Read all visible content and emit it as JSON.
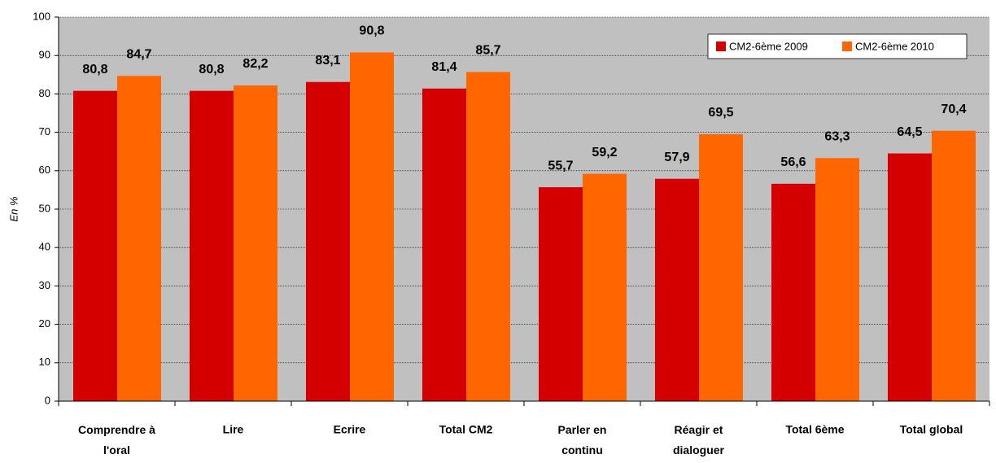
{
  "chart_data": {
    "type": "bar",
    "y_label": "En %",
    "categories": [
      "Comprendre à l'oral",
      "Lire",
      "Ecrire",
      "Total CM2",
      "Parler en continu",
      "Réagir et dialoguer",
      "Total 6ème",
      "Total global"
    ],
    "series": [
      {
        "name": "CM2-6ème 2009",
        "color": "#d40000",
        "values": [
          80.8,
          80.8,
          83.1,
          81.4,
          55.7,
          57.9,
          56.6,
          64.5
        ],
        "value_labels": [
          "80,8",
          "80,8",
          "83,1",
          "81,4",
          "55,7",
          "57,9",
          "56,6",
          "64,5"
        ]
      },
      {
        "name": "CM2-6ème 2010",
        "color": "#ff6600",
        "values": [
          84.7,
          82.2,
          90.8,
          85.7,
          59.2,
          69.5,
          63.3,
          70.4
        ],
        "value_labels": [
          "84,7",
          "82,2",
          "90,8",
          "85,7",
          "59,2",
          "69,5",
          "63,3",
          "70,4"
        ]
      }
    ],
    "ylim": [
      0,
      100
    ],
    "yticks": [
      0,
      10,
      20,
      30,
      40,
      50,
      60,
      70,
      80,
      90,
      100
    ],
    "grid": true,
    "legend": "top-right",
    "plot_background": "#c0c0c0"
  }
}
